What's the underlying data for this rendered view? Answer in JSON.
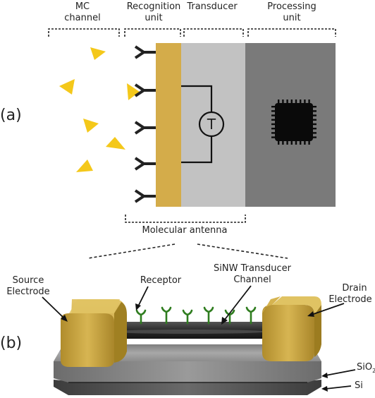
{
  "panel_a": {
    "label": "(a)",
    "sections": {
      "mc_channel": [
        "MC",
        "channel"
      ],
      "recognition_unit": [
        "Recognition",
        "unit"
      ],
      "transducer": "Transducer",
      "processing_unit": [
        "Processing",
        "unit"
      ]
    },
    "transducer_symbol": "T",
    "bottom_label": "Molecular antenna",
    "icons": {
      "molecule": "yellow-triangle-icon",
      "receptor": "y-receptor-icon",
      "processor": "microchip-icon"
    },
    "colors": {
      "molecule": "#f4c81a",
      "recognition_layer": "#d4ac4a",
      "transducer_block": "#c2c2c2",
      "processing_block": "#7a7a7a",
      "chip": "#0a0a0a"
    }
  },
  "panel_b": {
    "label": "(b)",
    "source_electrode": [
      "Source",
      "Electrode"
    ],
    "receptor": "Receptor",
    "sinw_channel": [
      "SiNW Transducer",
      "Channel"
    ],
    "drain_electrode": [
      "Drain",
      "Electrode"
    ],
    "sio2": {
      "base": "SiO",
      "subscript": "2"
    },
    "si": "Si",
    "icons": {
      "receptor": "green-receptor-icon"
    },
    "colors": {
      "electrode": "#c9a642",
      "receptor": "#2f7d1f",
      "nanowire": "#2a2a2a",
      "sio2_layer": "#8a8a8a",
      "si_layer": "#555555"
    }
  }
}
